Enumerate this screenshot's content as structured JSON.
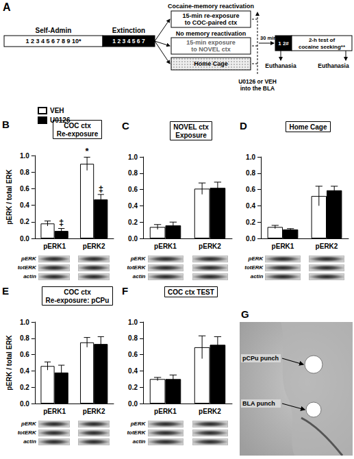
{
  "diagram": {
    "panel": "A",
    "self_admin": {
      "label": "Self-Admin",
      "sessions": "1 2 3 4 5 6 7 8 9 10*"
    },
    "extinction": {
      "label": "Extinction",
      "sessions": "1 2 3 4 5 6 7"
    },
    "conditions": [
      {
        "heading": "Cocaine-memory reactivation",
        "box": "15-min re-exposure to COC-paired ctx"
      },
      {
        "heading": "No memory reactivation",
        "box": "15-min exposure to NOVEL ctx"
      },
      {
        "box": "Home Cage"
      }
    ],
    "infusion": "U0126 or VEH into the BLA",
    "delay": "30 min",
    "test": {
      "sessions": "1 2#",
      "label": "2-h test of cocaine seeking**"
    },
    "endpoint": "Euthanasia"
  },
  "blot_labels": [
    "pERK",
    "totERK",
    "actin"
  ],
  "image": {
    "panel": "G",
    "labels": [
      "pCPu punch",
      "BLA punch"
    ]
  },
  "chart_data": [
    {
      "type": "bar",
      "panel": "B",
      "title": "COC ctx Re-exposure",
      "ylabel": "pERK / total ERK",
      "categories": [
        "pERK1",
        "pERK2"
      ],
      "series": [
        {
          "name": "VEH",
          "color": "#ffffff",
          "values": [
            0.18,
            0.9
          ],
          "errors": [
            0.03,
            0.08
          ]
        },
        {
          "name": "U0126",
          "color": "#000000",
          "values": [
            0.09,
            0.47
          ],
          "errors": [
            0.03,
            0.06
          ]
        }
      ],
      "ylim": [
        0,
        1
      ],
      "yticks": [
        {
          "value": 0,
          "label": "0.0"
        },
        0.2,
        0.4,
        0.6,
        0.8,
        {
          "value": 1,
          "label": "1.0"
        }
      ],
      "legend": "top-left",
      "annotations": [
        {
          "text": "*",
          "series": "VEH",
          "category": "pERK2"
        },
        {
          "text": "‡",
          "series": "U0126",
          "category": "pERK1"
        },
        {
          "text": "‡",
          "series": "U0126",
          "category": "pERK2"
        }
      ]
    },
    {
      "type": "bar",
      "panel": "C",
      "title": "NOVEL ctx Exposure",
      "categories": [
        "pERK1",
        "pERK2"
      ],
      "series": [
        {
          "name": "VEH",
          "color": "#ffffff",
          "values": [
            0.14,
            0.61
          ],
          "errors": [
            0.03,
            0.07
          ]
        },
        {
          "name": "U0126",
          "color": "#000000",
          "values": [
            0.16,
            0.62
          ],
          "errors": [
            0.04,
            0.07
          ]
        }
      ],
      "ylim": [
        0,
        1
      ],
      "yticks": [
        {
          "value": 0,
          "label": "0.0"
        },
        0.2,
        0.4,
        0.6,
        0.8,
        {
          "value": 1,
          "label": "1.0"
        }
      ]
    },
    {
      "type": "bar",
      "panel": "D",
      "title": "Home Cage",
      "categories": [
        "pERK1",
        "pERK2"
      ],
      "series": [
        {
          "name": "VEH",
          "color": "#ffffff",
          "values": [
            0.14,
            0.52
          ],
          "errors": [
            0.02,
            0.12
          ]
        },
        {
          "name": "U0126",
          "color": "#000000",
          "values": [
            0.11,
            0.59
          ],
          "errors": [
            0.01,
            0.05
          ]
        }
      ],
      "ylim": [
        0,
        1
      ],
      "yticks": [
        {
          "value": 0,
          "label": "0.0"
        },
        0.2,
        0.4,
        0.6,
        0.8,
        {
          "value": 1,
          "label": "1.0"
        }
      ]
    },
    {
      "type": "bar",
      "panel": "E",
      "title": "COC ctx Re-exposure: pCPu",
      "ylabel": "pERK / total ERK",
      "categories": [
        "pERK1",
        "pERK2"
      ],
      "series": [
        {
          "name": "VEH",
          "color": "#ffffff",
          "values": [
            0.46,
            0.75
          ],
          "errors": [
            0.05,
            0.06
          ]
        },
        {
          "name": "U0126",
          "color": "#000000",
          "values": [
            0.38,
            0.73
          ],
          "errors": [
            0.09,
            0.09
          ]
        }
      ],
      "ylim": [
        0,
        1
      ],
      "yticks": [
        {
          "value": 0,
          "label": "0.0"
        },
        0.2,
        0.4,
        0.6,
        0.8,
        {
          "value": 1,
          "label": "1.0"
        }
      ]
    },
    {
      "type": "bar",
      "panel": "F",
      "title": "COC ctx TEST",
      "categories": [
        "pERK1",
        "pERK2"
      ],
      "series": [
        {
          "name": "VEH",
          "color": "#ffffff",
          "values": [
            0.3,
            0.69
          ],
          "errors": [
            0.02,
            0.14
          ]
        },
        {
          "name": "U0126",
          "color": "#000000",
          "values": [
            0.3,
            0.72
          ],
          "errors": [
            0.05,
            0.1
          ]
        }
      ],
      "ylim": [
        0,
        1
      ],
      "yticks": [
        {
          "value": 0,
          "label": "0.0"
        },
        0.2,
        0.4,
        0.6,
        0.8,
        {
          "value": 1,
          "label": "1.0"
        }
      ]
    }
  ]
}
